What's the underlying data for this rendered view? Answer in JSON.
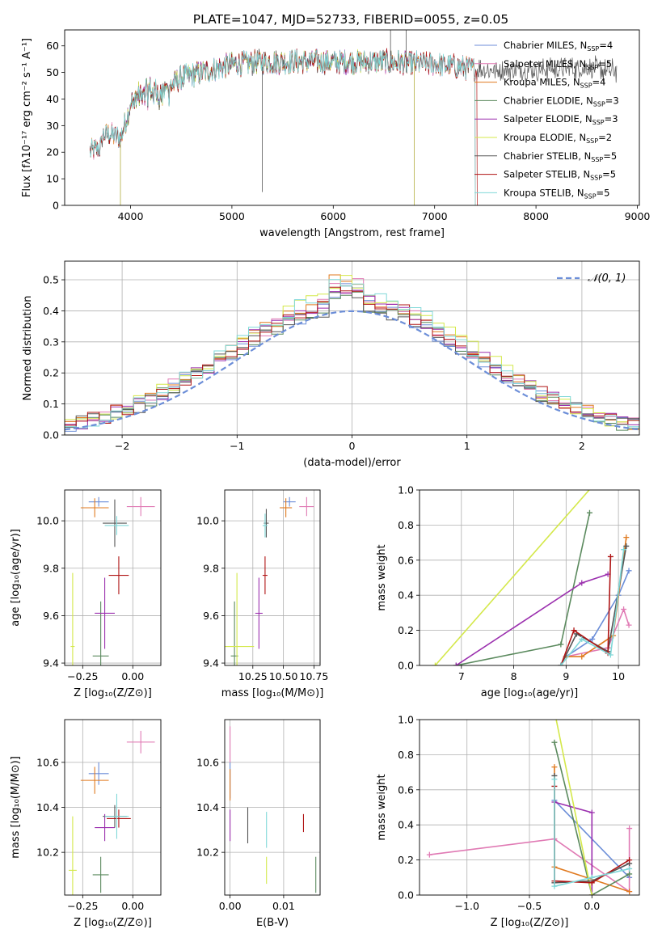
{
  "colors": {
    "grid": "#b0b0b0",
    "Chabrier MILES": "#6c8ed8",
    "Salpeter MILES": "#e07ab4",
    "Kroupa MILES": "#e07a1f",
    "Chabrier ELODIE": "#5b8a5e",
    "Salpeter ELODIE": "#9b2fae",
    "Kroupa ELODIE": "#d4e84a",
    "Chabrier STELIB": "#555555",
    "Salpeter STELIB": "#b01515",
    "Kroupa STELIB": "#7fd8d8",
    "normal": "#6c8ed8"
  },
  "chart_data": [
    {
      "id": "spectrum",
      "type": "line",
      "title": "PLATE=1047, MJD=52733, FIBERID=0055, z=0.05",
      "xlabel": "wavelength [Angstrom, rest frame]",
      "ylabel": "Flux [fλ10⁻¹⁷ erg cm⁻² s⁻¹ A⁻¹]",
      "xlim": [
        3350,
        9020
      ],
      "ylim": [
        0,
        66
      ],
      "xticks": [
        4000,
        5000,
        6000,
        7000,
        8000,
        9000
      ],
      "yticks": [
        0,
        10,
        20,
        30,
        40,
        50,
        60
      ],
      "grid": false,
      "legend_position": "top-right",
      "continuum": {
        "x": [
          3600,
          3700,
          3800,
          3900,
          4000,
          4100,
          4200,
          4300,
          4500,
          4700,
          5000,
          5300,
          5600,
          6000,
          6500,
          7000,
          7500,
          8000,
          8500,
          8800
        ],
        "y": [
          24,
          26,
          27,
          25,
          38,
          41,
          43,
          42,
          48,
          50,
          53,
          54,
          54,
          54,
          54,
          53,
          51,
          51,
          52,
          50
        ]
      },
      "series": [
        {
          "name": "Chabrier MILES",
          "nssp": "4",
          "x_range": [
            3600,
            7400
          ]
        },
        {
          "name": "Salpeter MILES",
          "nssp": "5",
          "x_range": [
            3600,
            7400
          ]
        },
        {
          "name": "Kroupa MILES",
          "nssp": "4",
          "x_range": [
            3600,
            7400
          ]
        },
        {
          "name": "Chabrier ELODIE",
          "nssp": "3",
          "x_range": [
            3900,
            6800
          ]
        },
        {
          "name": "Salpeter ELODIE",
          "nssp": "3",
          "x_range": [
            3900,
            6800
          ]
        },
        {
          "name": "Kroupa ELODIE",
          "nssp": "2",
          "x_range": [
            3900,
            6800
          ]
        },
        {
          "name": "Chabrier STELIB",
          "nssp": "5",
          "x_range": [
            3600,
            8800
          ]
        },
        {
          "name": "Salpeter STELIB",
          "nssp": "5",
          "x_range": [
            3600,
            7420
          ]
        },
        {
          "name": "Kroupa STELIB",
          "nssp": "5",
          "x_range": [
            3600,
            7400
          ]
        }
      ]
    },
    {
      "id": "residuals",
      "type": "histogram",
      "xlabel": "(data-model)/error",
      "ylabel": "Normed distribution",
      "xlim": [
        -2.5,
        2.5
      ],
      "ylim": [
        0,
        0.56
      ],
      "xticks": [
        -2,
        -1,
        0,
        1,
        2
      ],
      "yticks": [
        0.0,
        0.1,
        0.2,
        0.3,
        0.4,
        0.5
      ],
      "grid": true,
      "legend_position": "top-right",
      "normal_label": "𝒩(0, 1)",
      "bin_width": 0.1
    },
    {
      "id": "age-vs-z",
      "type": "scatter",
      "xlabel": "Z [log₁₀(Z/Z⊙)]",
      "ylabel": "age  [log₁₀(age/yr)]",
      "xlim": [
        -0.34,
        0.14
      ],
      "ylim": [
        9.39,
        10.13
      ],
      "xticks": [
        -0.25,
        0.0
      ],
      "xticklabels": [
        "−0.25",
        "0.00"
      ],
      "yticks": [
        9.4,
        9.6,
        9.8,
        10.0
      ],
      "grid": true,
      "points": [
        {
          "series": "Chabrier MILES",
          "x": -0.17,
          "y": 10.08,
          "xerr": 0.05,
          "yerr": 0.02
        },
        {
          "series": "Salpeter MILES",
          "x": 0.04,
          "y": 10.06,
          "xerr": 0.07,
          "yerr": 0.04
        },
        {
          "series": "Kroupa MILES",
          "x": -0.19,
          "y": 10.055,
          "xerr": 0.07,
          "yerr": 0.04
        },
        {
          "series": "Chabrier ELODIE",
          "x": -0.16,
          "y": 9.43,
          "xerr": 0.04,
          "yerr": 0.23
        },
        {
          "series": "Salpeter ELODIE",
          "x": -0.14,
          "y": 9.61,
          "xerr": 0.05,
          "yerr": 0.15
        },
        {
          "series": "Kroupa ELODIE",
          "x": -0.3,
          "y": 9.47,
          "xerr": 0.01,
          "yerr": 0.31
        },
        {
          "series": "Chabrier STELIB",
          "x": -0.09,
          "y": 9.99,
          "xerr": 0.06,
          "yerr": 0.1
        },
        {
          "series": "Salpeter STELIB",
          "x": -0.07,
          "y": 9.77,
          "xerr": 0.05,
          "yerr": 0.08
        },
        {
          "series": "Kroupa STELIB",
          "x": -0.08,
          "y": 9.98,
          "xerr": 0.06,
          "yerr": 0.04
        }
      ]
    },
    {
      "id": "age-vs-mass",
      "type": "scatter",
      "xlabel": "mass [log₁₀(M/M⊙)]",
      "ylabel": "",
      "xlim": [
        10.02,
        10.8
      ],
      "ylim": [
        9.39,
        10.13
      ],
      "xticks": [
        10.25,
        10.5,
        10.75
      ],
      "xticklabels": [
        "10.25",
        "10.50",
        "10.75"
      ],
      "yticks": [
        9.4,
        9.6,
        9.8,
        10.0
      ],
      "grid": true,
      "points": [
        {
          "series": "Chabrier MILES",
          "x": 10.55,
          "y": 10.08,
          "xerr": 0.05,
          "yerr": 0.02
        },
        {
          "series": "Salpeter MILES",
          "x": 10.69,
          "y": 10.06,
          "xerr": 0.06,
          "yerr": 0.04
        },
        {
          "series": "Kroupa MILES",
          "x": 10.52,
          "y": 10.055,
          "xerr": 0.05,
          "yerr": 0.04
        },
        {
          "series": "Chabrier ELODIE",
          "x": 10.1,
          "y": 9.43,
          "xerr": 0.03,
          "yerr": 0.23
        },
        {
          "series": "Salpeter ELODIE",
          "x": 10.3,
          "y": 9.61,
          "xerr": 0.03,
          "yerr": 0.15
        },
        {
          "series": "Kroupa ELODIE",
          "x": 10.12,
          "y": 9.47,
          "xerr": 0.14,
          "yerr": 0.31
        },
        {
          "series": "Chabrier STELIB",
          "x": 10.36,
          "y": 9.99,
          "xerr": 0.02,
          "yerr": 0.06
        },
        {
          "series": "Salpeter STELIB",
          "x": 10.35,
          "y": 9.77,
          "xerr": 0.02,
          "yerr": 0.08
        },
        {
          "series": "Kroupa STELIB",
          "x": 10.35,
          "y": 9.98,
          "xerr": 0.02,
          "yerr": 0.05
        }
      ]
    },
    {
      "id": "weight-vs-age",
      "type": "line",
      "xlabel": "age  [log₁₀(age/yr)]",
      "ylabel": "mass weight",
      "xlim": [
        6.2,
        10.4
      ],
      "ylim": [
        0,
        1.0
      ],
      "xticks": [
        7,
        8,
        9,
        10
      ],
      "yticks": [
        0.0,
        0.2,
        0.4,
        0.6,
        0.8,
        1.0
      ],
      "grid": true,
      "series": [
        {
          "name": "Chabrier MILES",
          "points": [
            [
              9.0,
              0.05
            ],
            [
              9.5,
              0.15
            ],
            [
              10.0,
              0.4
            ],
            [
              10.2,
              0.54
            ]
          ]
        },
        {
          "name": "Salpeter MILES",
          "points": [
            [
              9.0,
              0.05
            ],
            [
              9.8,
              0.1
            ],
            [
              10.1,
              0.32
            ],
            [
              10.2,
              0.23
            ]
          ]
        },
        {
          "name": "Kroupa MILES",
          "points": [
            [
              9.0,
              0.05
            ],
            [
              9.3,
              0.05
            ],
            [
              9.9,
              0.17
            ],
            [
              10.15,
              0.73
            ]
          ]
        },
        {
          "name": "Chabrier ELODIE",
          "points": [
            [
              6.9,
              0.0
            ],
            [
              8.9,
              0.12
            ],
            [
              9.45,
              0.87
            ]
          ]
        },
        {
          "name": "Salpeter ELODIE",
          "points": [
            [
              6.9,
              0.0
            ],
            [
              9.3,
              0.47
            ],
            [
              9.8,
              0.52
            ]
          ]
        },
        {
          "name": "Kroupa ELODIE",
          "points": [
            [
              6.5,
              0.0
            ],
            [
              9.5,
              1.02
            ]
          ]
        },
        {
          "name": "Chabrier STELIB",
          "points": [
            [
              8.9,
              0.0
            ],
            [
              9.2,
              0.18
            ],
            [
              9.8,
              0.08
            ],
            [
              10.15,
              0.68
            ]
          ]
        },
        {
          "name": "Salpeter STELIB",
          "points": [
            [
              8.9,
              0.0
            ],
            [
              9.15,
              0.2
            ],
            [
              9.8,
              0.07
            ],
            [
              9.85,
              0.62
            ]
          ]
        },
        {
          "name": "Kroupa STELIB",
          "points": [
            [
              8.9,
              0.0
            ],
            [
              9.3,
              0.15
            ],
            [
              9.85,
              0.06
            ],
            [
              10.1,
              0.66
            ]
          ]
        }
      ]
    },
    {
      "id": "mass-vs-z",
      "type": "scatter",
      "xlabel": "Z [log₁₀(Z/Z⊙)]",
      "ylabel": "mass [log₁₀(M/M⊙)]",
      "xlim": [
        -0.34,
        0.14
      ],
      "ylim": [
        10.01,
        10.79
      ],
      "xticks": [
        -0.25,
        0.0
      ],
      "xticklabels": [
        "−0.25",
        "0.00"
      ],
      "yticks": [
        10.2,
        10.4,
        10.6
      ],
      "grid": true,
      "points": [
        {
          "series": "Chabrier MILES",
          "x": -0.17,
          "y": 10.55,
          "xerr": 0.05,
          "yerr": 0.05
        },
        {
          "series": "Salpeter MILES",
          "x": 0.04,
          "y": 10.69,
          "xerr": 0.07,
          "yerr": 0.05
        },
        {
          "series": "Kroupa MILES",
          "x": -0.19,
          "y": 10.52,
          "xerr": 0.07,
          "yerr": 0.06
        },
        {
          "series": "Chabrier ELODIE",
          "x": -0.16,
          "y": 10.1,
          "xerr": 0.04,
          "yerr": 0.08
        },
        {
          "series": "Salpeter ELODIE",
          "x": -0.14,
          "y": 10.31,
          "xerr": 0.05,
          "yerr": 0.06
        },
        {
          "series": "Kroupa ELODIE",
          "x": -0.3,
          "y": 10.12,
          "xerr": 0.02,
          "yerr": 0.24
        },
        {
          "series": "Chabrier STELIB",
          "x": -0.09,
          "y": 10.36,
          "xerr": 0.06,
          "yerr": 0.05
        },
        {
          "series": "Salpeter STELIB",
          "x": -0.07,
          "y": 10.35,
          "xerr": 0.06,
          "yerr": 0.04
        },
        {
          "series": "Kroupa STELIB",
          "x": -0.08,
          "y": 10.36,
          "xerr": 0.06,
          "yerr": 0.1
        }
      ]
    },
    {
      "id": "mass-vs-ebv",
      "type": "scatter",
      "xlabel": "E(B-V)",
      "ylabel": "",
      "xlim": [
        -0.001,
        0.0168
      ],
      "ylim": [
        10.01,
        10.79
      ],
      "xticks": [
        0.0,
        0.01
      ],
      "xticklabels": [
        "0.00",
        "0.01"
      ],
      "yticks": [
        10.2,
        10.4,
        10.6
      ],
      "grid": true,
      "points": [
        {
          "series": "Chabrier MILES",
          "x": 0.0,
          "y": 10.52,
          "yerr": 0.08
        },
        {
          "series": "Salpeter MILES",
          "x": 0.0,
          "y": 10.68,
          "yerr": 0.08
        },
        {
          "series": "Kroupa MILES",
          "x": 0.0,
          "y": 10.5,
          "yerr": 0.07
        },
        {
          "series": "Chabrier ELODIE",
          "x": 0.016,
          "y": 10.1,
          "yerr": 0.08
        },
        {
          "series": "Salpeter ELODIE",
          "x": 0.0,
          "y": 10.32,
          "yerr": 0.07
        },
        {
          "series": "Kroupa ELODIE",
          "x": 0.0068,
          "y": 10.12,
          "yerr": 0.06
        },
        {
          "series": "Chabrier STELIB",
          "x": 0.0033,
          "y": 10.32,
          "yerr": 0.08
        },
        {
          "series": "Salpeter STELIB",
          "x": 0.0137,
          "y": 10.33,
          "yerr": 0.04
        },
        {
          "series": "Kroupa STELIB",
          "x": 0.0068,
          "y": 10.3,
          "yerr": 0.08
        }
      ]
    },
    {
      "id": "weight-vs-z",
      "type": "line",
      "xlabel": "Z [log₁₀(Z/Z⊙)]",
      "ylabel": "mass weight",
      "xlim": [
        -1.38,
        0.38
      ],
      "ylim": [
        0,
        1.0
      ],
      "xticks": [
        -1.0,
        -0.5,
        0.0
      ],
      "xticklabels": [
        "−1.0",
        "−0.5",
        "0.0"
      ],
      "yticks": [
        0.0,
        0.2,
        0.4,
        0.6,
        0.8,
        1.0
      ],
      "grid": true,
      "series": [
        {
          "name": "Chabrier MILES",
          "points": [
            [
              -0.3,
              0.54
            ],
            [
              0.3,
              0.1
            ]
          ]
        },
        {
          "name": "Salpeter MILES",
          "points": [
            [
              -1.3,
              0.23
            ],
            [
              -0.3,
              0.32
            ],
            [
              0.3,
              0.02
            ],
            [
              0.3,
              0.38
            ]
          ]
        },
        {
          "name": "Kroupa MILES",
          "points": [
            [
              -0.3,
              0.73
            ],
            [
              -0.3,
              0.16
            ],
            [
              0.3,
              0.02
            ]
          ]
        },
        {
          "name": "Chabrier ELODIE",
          "points": [
            [
              -0.3,
              0.87
            ],
            [
              0.0,
              0.0
            ],
            [
              0.3,
              0.12
            ]
          ]
        },
        {
          "name": "Salpeter ELODIE",
          "points": [
            [
              -0.3,
              0.53
            ],
            [
              0.0,
              0.47
            ],
            [
              0.0,
              0.0
            ]
          ]
        },
        {
          "name": "Kroupa ELODIE",
          "points": [
            [
              -0.3,
              1.05
            ],
            [
              0.0,
              0.0
            ]
          ]
        },
        {
          "name": "Chabrier STELIB",
          "points": [
            [
              -0.3,
              0.68
            ],
            [
              -0.3,
              0.07
            ],
            [
              0.0,
              0.08
            ],
            [
              0.3,
              0.18
            ]
          ]
        },
        {
          "name": "Salpeter STELIB",
          "points": [
            [
              -0.3,
              0.62
            ],
            [
              -0.3,
              0.08
            ],
            [
              0.0,
              0.07
            ],
            [
              0.3,
              0.2
            ]
          ]
        },
        {
          "name": "Kroupa STELIB",
          "points": [
            [
              -0.3,
              0.66
            ],
            [
              -0.3,
              0.05
            ],
            [
              0.0,
              0.1
            ],
            [
              0.3,
              0.15
            ]
          ]
        }
      ]
    }
  ]
}
